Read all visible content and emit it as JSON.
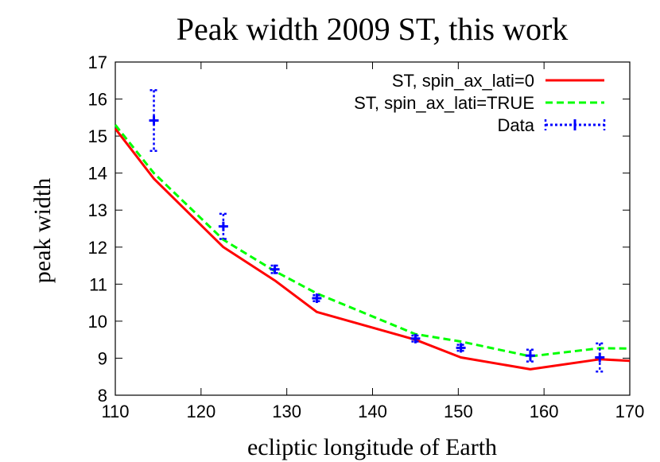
{
  "chart_data": {
    "type": "line",
    "title": "Peak width 2009 ST, this work",
    "xlabel": "ecliptic longitude of Earth",
    "ylabel": "peak width",
    "xlim": [
      110,
      170
    ],
    "ylim": [
      8,
      17
    ],
    "xticks": [
      110,
      120,
      130,
      140,
      150,
      160,
      170
    ],
    "yticks": [
      8,
      9,
      10,
      11,
      12,
      13,
      14,
      15,
      16,
      17
    ],
    "grid": false,
    "legend_position": "top-right",
    "series": [
      {
        "name": "ST, spin_ax_lati=0",
        "kind": "line",
        "style": "solid",
        "color": "#ff0000",
        "x": [
          110,
          114.5,
          122.6,
          128.6,
          133.5,
          145,
          150.3,
          158.4,
          166.5,
          170
        ],
        "y": [
          15.2,
          13.85,
          12.0,
          11.1,
          10.25,
          9.5,
          9.02,
          8.7,
          8.97,
          8.93
        ]
      },
      {
        "name": "ST, spin_ax_lati=TRUE",
        "kind": "line",
        "style": "dashed",
        "color": "#00ff00",
        "x": [
          110,
          114.5,
          122.6,
          128.6,
          133.5,
          145,
          150.3,
          158.4,
          166.5,
          170
        ],
        "y": [
          15.3,
          14.0,
          12.2,
          11.35,
          10.75,
          9.65,
          9.45,
          9.05,
          9.27,
          9.26
        ]
      },
      {
        "name": "Data",
        "kind": "errorbars",
        "style": "dotted",
        "color": "#0000ff",
        "x": [
          114.5,
          122.6,
          128.6,
          133.5,
          145,
          150.3,
          158.4,
          166.5
        ],
        "y": [
          15.42,
          12.56,
          11.4,
          10.62,
          9.53,
          9.28,
          9.07,
          9.02
        ],
        "yerr": [
          0.82,
          0.34,
          0.1,
          0.08,
          0.08,
          0.08,
          0.16,
          0.38
        ]
      }
    ]
  }
}
